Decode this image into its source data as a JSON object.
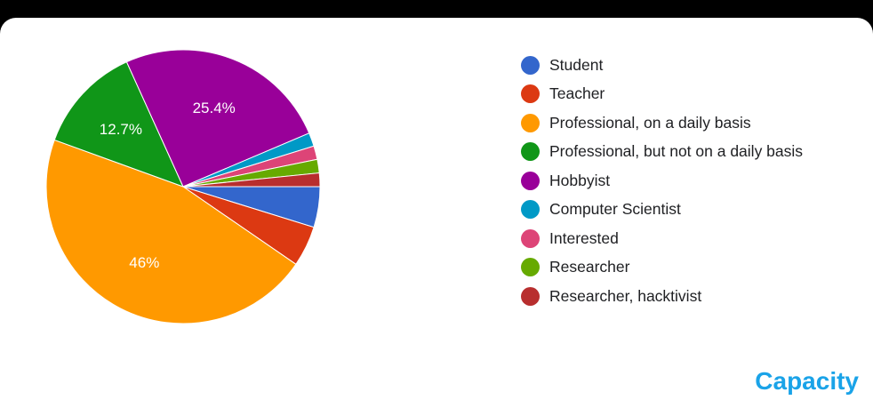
{
  "chart_data": {
    "type": "pie",
    "slices": [
      {
        "label": "Student",
        "value": 4.8,
        "color": "#3366cc"
      },
      {
        "label": "Teacher",
        "value": 4.8,
        "color": "#dc3912"
      },
      {
        "label": "Professional, on a daily basis",
        "value": 46,
        "display": "46%",
        "color": "#ff9900"
      },
      {
        "label": "Professional, but not on a daily basis",
        "value": 12.7,
        "display": "12.7%",
        "color": "#109618"
      },
      {
        "label": "Hobbyist",
        "value": 25.4,
        "display": "25.4%",
        "color": "#990099"
      },
      {
        "label": "Computer Scientist",
        "value": 1.6,
        "color": "#0099c6"
      },
      {
        "label": "Interested",
        "value": 1.6,
        "color": "#dd4477"
      },
      {
        "label": "Researcher",
        "value": 1.6,
        "color": "#66aa00"
      },
      {
        "label": "Researcher, hacktivist",
        "value": 1.6,
        "color": "#b82e2e"
      }
    ],
    "legend_position": "right"
  },
  "section_title": "Capacity"
}
